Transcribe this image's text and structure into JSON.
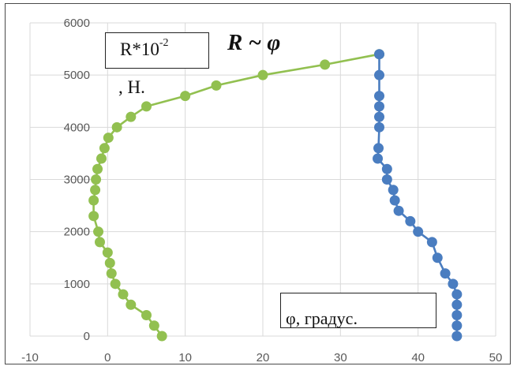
{
  "chart_data": {
    "type": "scatter",
    "title": "R ~ φ",
    "ylabel_main": "R*10",
    "ylabel_exp": "-2",
    "ylabel_cont": ", Н.",
    "xlabel": "φ, градус.",
    "xlim": [
      -10,
      50
    ],
    "ylim": [
      0,
      6000
    ],
    "xticks": [
      "-10",
      "0",
      "10",
      "20",
      "30",
      "40",
      "50"
    ],
    "yticks": [
      "0",
      "1000",
      "2000",
      "3000",
      "4000",
      "5000",
      "6000"
    ],
    "grid": true,
    "series": [
      {
        "color": "#92c050",
        "points": [
          [
            7,
            0
          ],
          [
            6,
            200
          ],
          [
            5,
            400
          ],
          [
            3,
            600
          ],
          [
            2,
            800
          ],
          [
            1,
            1000
          ],
          [
            0.5,
            1200
          ],
          [
            0.3,
            1400
          ],
          [
            0,
            1600
          ],
          [
            -1,
            1800
          ],
          [
            -1.2,
            2000
          ],
          [
            -1.8,
            2300
          ],
          [
            -1.8,
            2600
          ],
          [
            -1.6,
            2800
          ],
          [
            -1.5,
            3000
          ],
          [
            -1.3,
            3200
          ],
          [
            -0.8,
            3400
          ],
          [
            -0.4,
            3600
          ],
          [
            0.1,
            3800
          ],
          [
            1.2,
            4000
          ],
          [
            3,
            4200
          ],
          [
            5,
            4400
          ],
          [
            10,
            4600
          ],
          [
            14,
            4800
          ],
          [
            20,
            5000
          ],
          [
            28,
            5200
          ],
          [
            35,
            5400
          ]
        ]
      },
      {
        "color": "#4a7dc0",
        "points": [
          [
            45,
            0
          ],
          [
            45,
            200
          ],
          [
            45,
            400
          ],
          [
            45,
            600
          ],
          [
            45,
            800
          ],
          [
            44.5,
            1000
          ],
          [
            43.5,
            1200
          ],
          [
            42.5,
            1500
          ],
          [
            41.8,
            1800
          ],
          [
            40,
            2000
          ],
          [
            39,
            2200
          ],
          [
            37.5,
            2400
          ],
          [
            37,
            2600
          ],
          [
            36.8,
            2800
          ],
          [
            36,
            3000
          ],
          [
            36,
            3200
          ],
          [
            34.8,
            3400
          ],
          [
            34.9,
            3600
          ],
          [
            35,
            4000
          ],
          [
            35,
            4200
          ],
          [
            35,
            4400
          ],
          [
            35,
            4600
          ],
          [
            35,
            5000
          ],
          [
            35,
            5400
          ]
        ]
      }
    ]
  }
}
